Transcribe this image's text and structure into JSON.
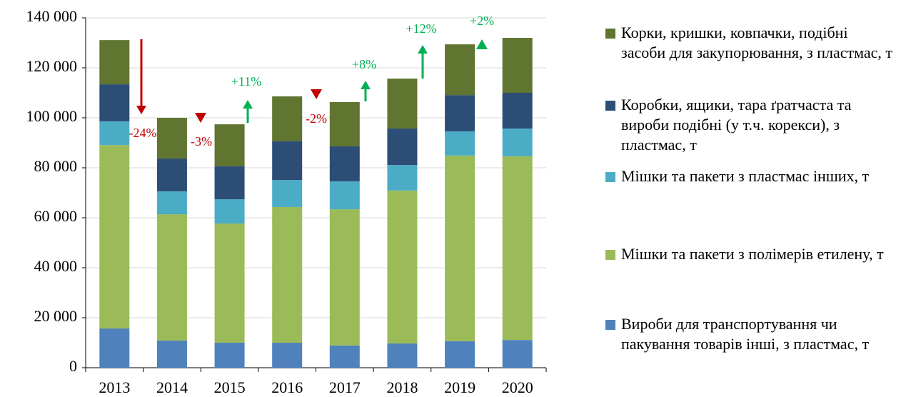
{
  "chart_data": {
    "type": "stacked_bar",
    "categories": [
      "2013",
      "2014",
      "2015",
      "2016",
      "2017",
      "2018",
      "2019",
      "2020"
    ],
    "series": [
      {
        "name": "Вироби для транспортування чи пакування товарів інші, з пластмас, т",
        "color": "#4f81bd",
        "values": [
          15700,
          10900,
          10000,
          10000,
          8900,
          9700,
          10600,
          11100
        ]
      },
      {
        "name": "Мішки та пакети з полімерів етилену, т",
        "color": "#9bbb59",
        "values": [
          73400,
          50500,
          47700,
          54300,
          54500,
          61200,
          74300,
          73500
        ]
      },
      {
        "name": "Мішки та пакети з пластмас інших, т",
        "color": "#4bacc6",
        "values": [
          9500,
          9200,
          9700,
          10800,
          11200,
          10200,
          9700,
          11100
        ]
      },
      {
        "name": "Коробки, ящики, тара ґратчаста та вироби подібні (у т.ч. корекси), з пластмас, т",
        "color": "#2c4d75",
        "values": [
          14800,
          13100,
          13200,
          15500,
          14000,
          14600,
          14500,
          14300
        ]
      },
      {
        "name": "Корки, кришки, ковпачки, подібні засоби для закупорювання, з пластмас, т",
        "color": "#5f7530",
        "values": [
          17700,
          16300,
          16800,
          18000,
          17700,
          20000,
          20300,
          22000
        ]
      }
    ],
    "ylim": [
      0,
      140000
    ],
    "yticks": [
      0,
      {
        "value": 20000,
        "label": "20 000"
      },
      {
        "value": 40000,
        "label": "40 000"
      },
      {
        "value": 60000,
        "label": "60 000"
      },
      {
        "value": 80000,
        "label": "80 000"
      },
      {
        "value": 100000,
        "label": "100 000"
      },
      {
        "value": 120000,
        "label": "120 000"
      },
      {
        "value": 140000,
        "label": "140 000"
      }
    ],
    "grid": true,
    "annotations": [
      {
        "text": "-24%",
        "color": "#c00000"
      },
      {
        "text": "-3%",
        "color": "#c00000"
      },
      {
        "text": "+11%",
        "color": "#00b050"
      },
      {
        "text": "-2%",
        "color": "#c00000"
      },
      {
        "text": "+8%",
        "color": "#00b050"
      },
      {
        "text": "+12%",
        "color": "#00b050"
      },
      {
        "text": "+2%",
        "color": "#00b050"
      }
    ]
  }
}
